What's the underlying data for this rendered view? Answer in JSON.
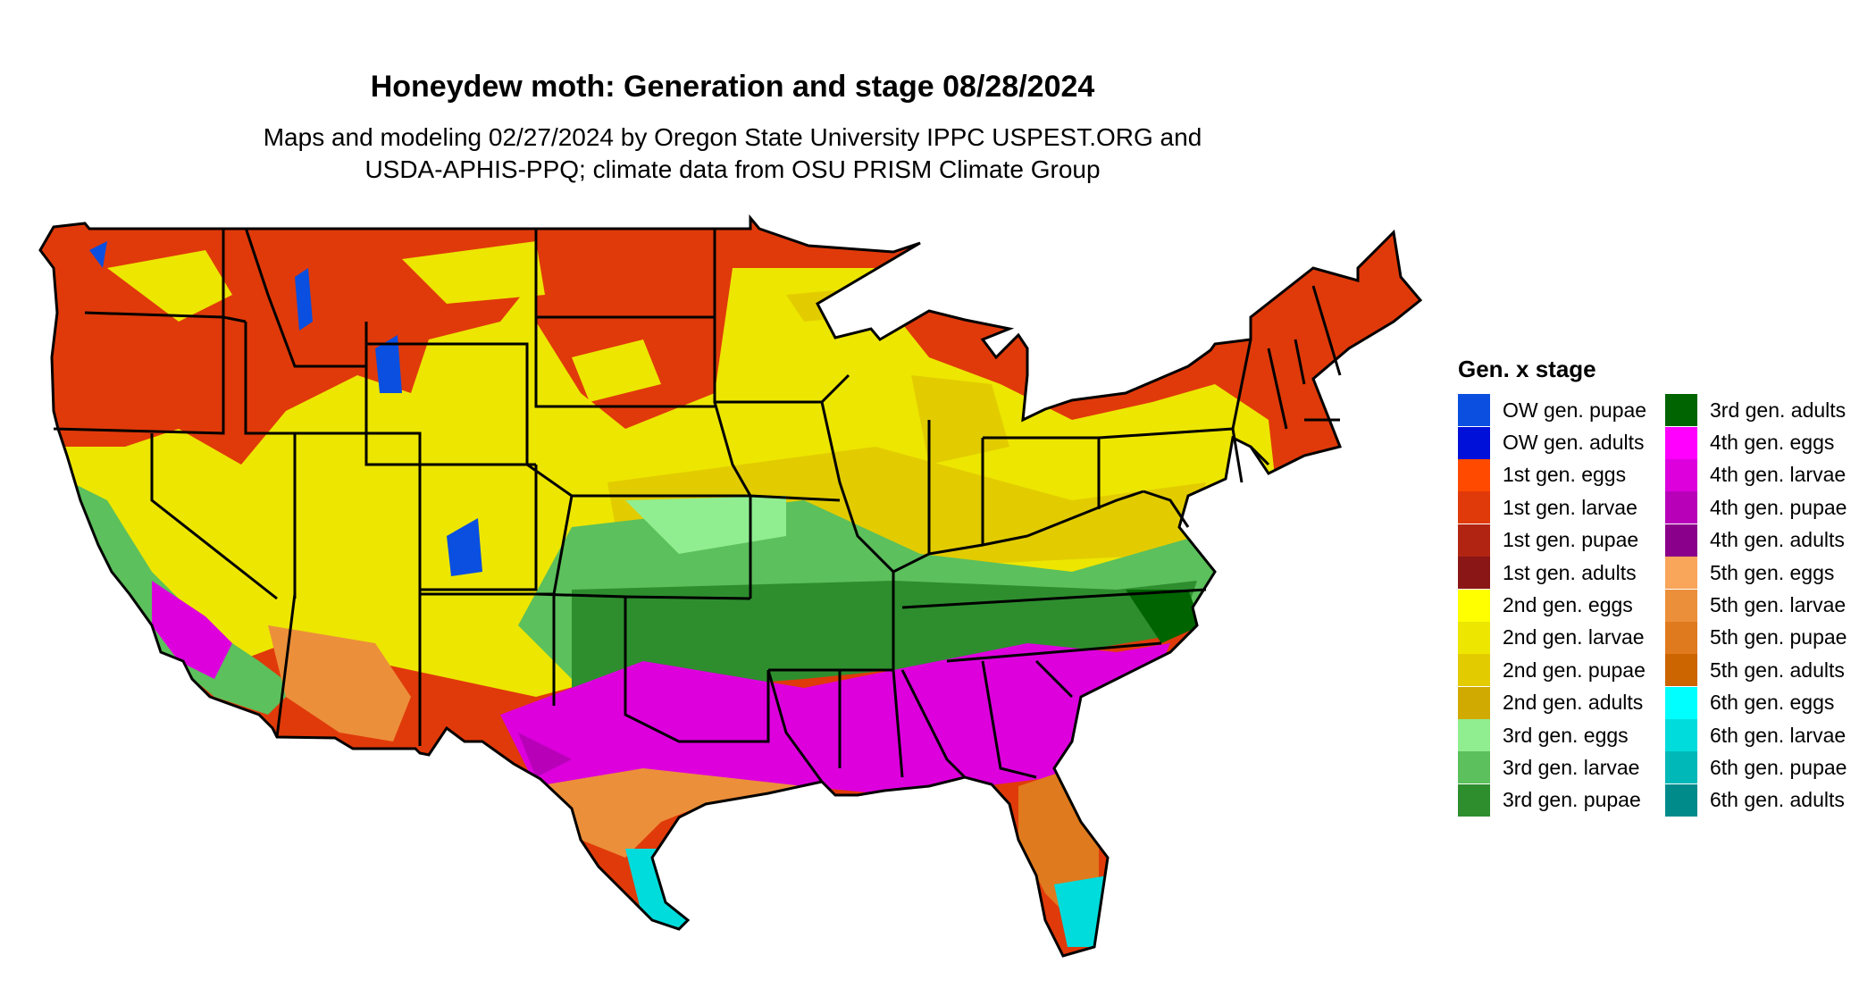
{
  "title": "Honeydew moth: Generation and stage 08/28/2024",
  "subtitle_lines": [
    "Maps and modeling 02/27/2024 by Oregon State University IPPC USPEST.ORG and",
    "USDA-APHIS-PPQ; climate data from OSU PRISM Climate Group"
  ],
  "legend": {
    "title": "Gen. x stage",
    "items": [
      {
        "label": "OW gen. pupae",
        "color": "#0a4fe0"
      },
      {
        "label": "OW gen. adults",
        "color": "#0010d8"
      },
      {
        "label": "1st gen. eggs",
        "color": "#ff4a00"
      },
      {
        "label": "1st gen. larvae",
        "color": "#e03a0a"
      },
      {
        "label": "1st gen. pupae",
        "color": "#b22412"
      },
      {
        "label": "1st gen. adults",
        "color": "#8a1616"
      },
      {
        "label": "2nd gen. eggs",
        "color": "#ffff00"
      },
      {
        "label": "2nd gen. larvae",
        "color": "#ede600"
      },
      {
        "label": "2nd gen. pupae",
        "color": "#e2cc00"
      },
      {
        "label": "2nd gen. adults",
        "color": "#d0aa00"
      },
      {
        "label": "3rd gen. eggs",
        "color": "#90ee90"
      },
      {
        "label": "3rd gen. larvae",
        "color": "#5cc05c"
      },
      {
        "label": "3rd gen. pupae",
        "color": "#2e8e2e"
      },
      {
        "label": "3rd gen. adults",
        "color": "#006400"
      },
      {
        "label": "4th gen. eggs",
        "color": "#ff00ff"
      },
      {
        "label": "4th gen. larvae",
        "color": "#dd00dd"
      },
      {
        "label": "4th gen. pupae",
        "color": "#b800b8"
      },
      {
        "label": "4th gen. adults",
        "color": "#8b008b"
      },
      {
        "label": "5th gen. eggs",
        "color": "#f9a55a"
      },
      {
        "label": "5th gen. larvae",
        "color": "#ec8f3a"
      },
      {
        "label": "5th gen. pupae",
        "color": "#df7a1e"
      },
      {
        "label": "5th gen. adults",
        "color": "#cc6400"
      },
      {
        "label": "6th gen. eggs",
        "color": "#00ffff"
      },
      {
        "label": "6th gen. larvae",
        "color": "#00dcdc"
      },
      {
        "label": "6th gen. pupae",
        "color": "#00b8b8"
      },
      {
        "label": "6th gen. adults",
        "color": "#008b8b"
      }
    ]
  }
}
